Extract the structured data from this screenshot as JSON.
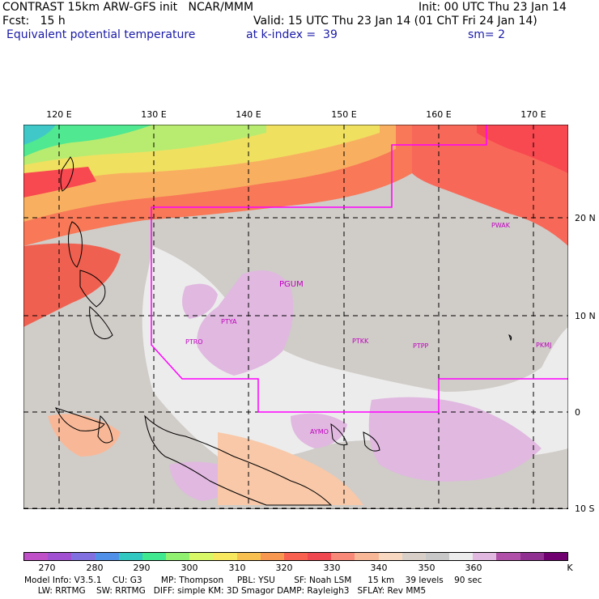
{
  "header": {
    "line1_left": "CONTRAST 15km ARW-GFS init   NCAR/MMM",
    "line1_right": "Init: 00 UTC Thu 23 Jan 14",
    "line2_left": "Fcst:   15 h",
    "line2_right": "Valid: 15 UTC Thu 23 Jan 14 (01 ChT Fri 24 Jan 14)",
    "field": "Equivalent potential temperature",
    "level": "at k-index =  39",
    "smoothing": "sm= 2"
  },
  "axes": {
    "lon_labels": [
      "120 E",
      "130 E",
      "140 E",
      "150 E",
      "160 E",
      "170 E"
    ],
    "lat_labels": [
      "20 N",
      "10 N",
      "0",
      "10 S"
    ]
  },
  "stations": [
    "PWAK",
    "PGUM",
    "PTYA",
    "PTRO",
    "PTKK",
    "PTPP",
    "PKMJ",
    "AYMO"
  ],
  "colorbar": {
    "labels": [
      "270",
      "280",
      "290",
      "300",
      "310",
      "320",
      "330",
      "340",
      "350",
      "360"
    ],
    "unit": "K",
    "colors": [
      "#c050c8",
      "#a050d0",
      "#8070e0",
      "#5090e8",
      "#30c8c0",
      "#40e890",
      "#90f070",
      "#d8f868",
      "#f8e860",
      "#f8c050",
      "#f89850",
      "#f86050",
      "#f04850",
      "#f88878",
      "#f8b898",
      "#f8d8c0",
      "#d8d0c8",
      "#c8c8c8",
      "#ececec",
      "#e0b8e0",
      "#b050a8",
      "#903090",
      "#700070"
    ]
  },
  "footer": {
    "line1": "Model Info: V3.5.1    CU: G3       MP: Thompson     PBL: YSU       SF: Noah LSM      15 km    39 levels    90 sec",
    "line2": "     LW: RRTMG    SW: RRTMG   DIFF: simple KM: 3D Smagor DAMP: Rayleigh3   SFLAY: Rev MM5"
  }
}
